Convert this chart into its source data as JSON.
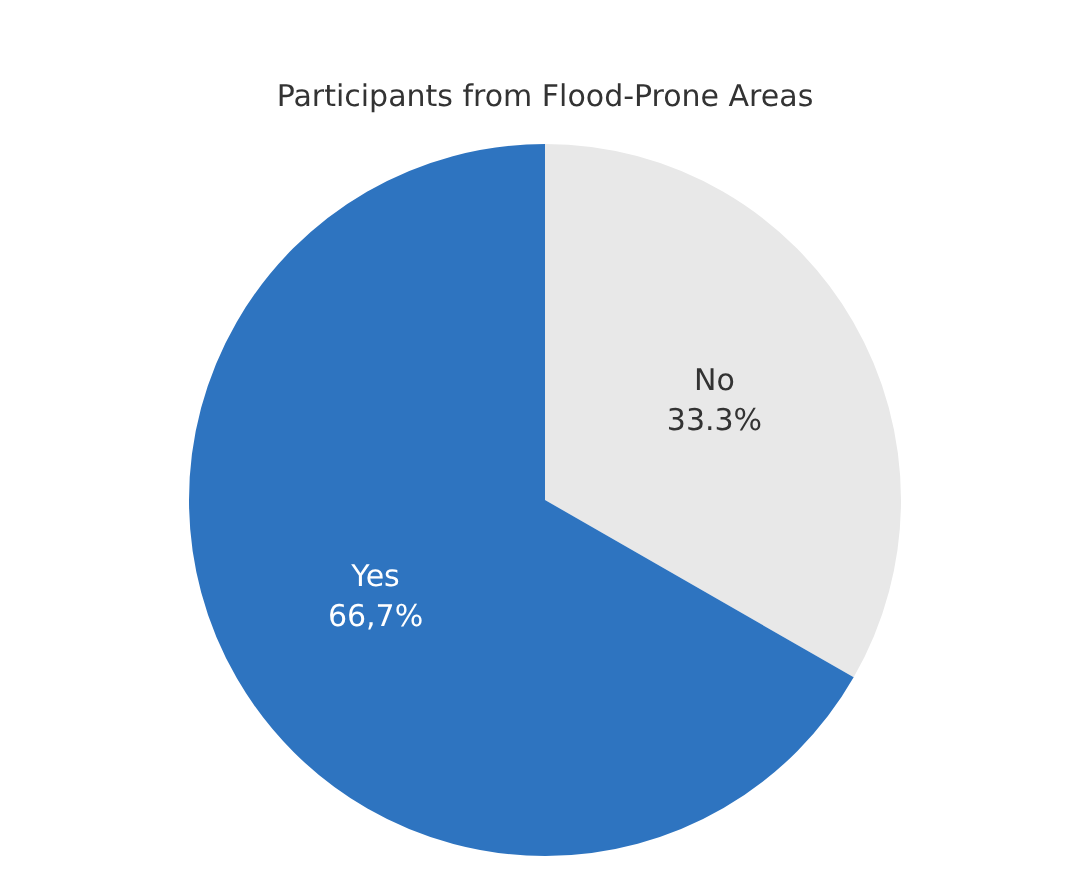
{
  "chart_data": {
    "type": "pie",
    "title": "Participants from Flood-Prone Areas",
    "categories": [
      "No",
      "Yes"
    ],
    "values": [
      33.3,
      66.7
    ],
    "colors": [
      "#e8e8e8",
      "#2e74c0"
    ],
    "value_labels": [
      "33.3%",
      "66,7%"
    ],
    "legend": false
  }
}
